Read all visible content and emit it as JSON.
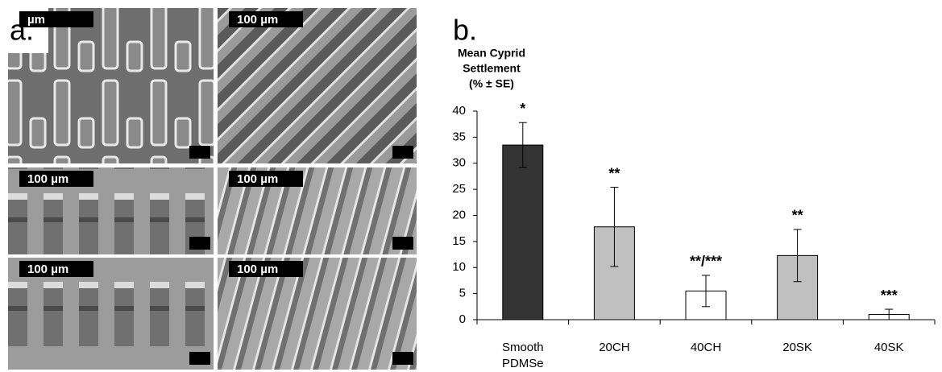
{
  "panel_a": {
    "label": "a.",
    "scale_labels": [
      "µm",
      "100 µm",
      "100 µm",
      "100 µm",
      "100 µm",
      "100 µm"
    ]
  },
  "chart_data": {
    "type": "bar",
    "panel_label": "b.",
    "y_label": [
      "Mean Cyprid",
      "Settlement",
      "(% ± SE)"
    ],
    "categories": [
      "Smooth PDMSe",
      "20CH",
      "40CH",
      "20SK",
      "40SK"
    ],
    "values": [
      33.5,
      17.8,
      5.5,
      12.3,
      1
    ],
    "errors": [
      4.3,
      7.6,
      3,
      5,
      1
    ],
    "colors": [
      "#333333",
      "#c0c0c0",
      "#ffffff",
      "#c0c0c0",
      "#ffffff"
    ],
    "annotations": [
      "*",
      "**",
      "**/***",
      "**",
      "***"
    ],
    "ylim": [
      0,
      40
    ],
    "yticks": [
      0,
      5,
      10,
      15,
      20,
      25,
      30,
      35,
      40
    ]
  }
}
